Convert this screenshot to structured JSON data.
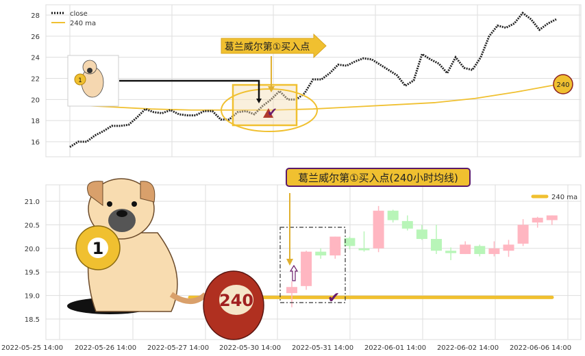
{
  "chart_data": [
    {
      "type": "line",
      "ylim": [
        15,
        29
      ],
      "yticks": [
        "16",
        "18",
        "20",
        "22",
        "24",
        "26",
        "28"
      ],
      "grid": true,
      "legend_placement": "top-left",
      "series": [
        {
          "name": "close",
          "style": "dotted",
          "color": "#111111",
          "values": [
            15.5,
            16.0,
            16.0,
            16.6,
            17.0,
            17.5,
            17.5,
            17.6,
            18.3,
            19.1,
            18.8,
            18.7,
            19.0,
            18.6,
            18.5,
            18.5,
            18.9,
            18.9,
            18.1,
            18.1,
            18.8,
            18.9,
            18.6,
            19.4,
            20.0,
            20.8,
            20.0,
            20.0,
            20.6,
            21.9,
            21.9,
            22.5,
            23.3,
            23.2,
            23.6,
            23.9,
            23.8,
            23.3,
            22.8,
            22.3,
            21.3,
            21.8,
            24.3,
            23.8,
            23.4,
            22.5,
            24.0,
            23.0,
            22.8,
            24.0,
            26.0,
            27.0,
            26.8,
            27.2,
            28.2,
            27.6,
            26.6,
            27.2,
            27.6
          ]
        },
        {
          "name": "240 ma",
          "color": "#f0c030",
          "values": [
            19.5,
            19.3,
            19.1,
            19.0,
            19.0,
            19.0,
            19.1,
            19.3,
            19.5,
            19.7,
            20.1,
            20.7,
            21.4
          ]
        }
      ],
      "annotations": {
        "arrow_label": "葛兰威尔第①买入点",
        "ball_label": "240"
      }
    },
    {
      "type": "candlestick",
      "ylim": [
        18.25,
        21.25
      ],
      "yticks": [
        "18.5",
        "19.0",
        "19.5",
        "20.0",
        "20.5",
        "21.0"
      ],
      "xticks": [
        "2022-05-25 14:00",
        "2022-05-26 14:00",
        "2022-05-27 14:00",
        "2022-05-30 14:00",
        "2022-05-31 14:00",
        "2022-06-01 14:00",
        "2022-06-02 14:00",
        "2022-06-06 14:00"
      ],
      "grid": true,
      "legend_placement": "top-right",
      "up_color": "#ffb6c1",
      "down_color": "#b8f5b8",
      "candles": [
        {
          "open": 19.05,
          "close": 19.18,
          "high": 19.3,
          "low": 18.75
        },
        {
          "open": 19.2,
          "close": 19.93,
          "high": 19.95,
          "low": 19.12
        },
        {
          "open": 19.93,
          "close": 19.85,
          "high": 20.0,
          "low": 19.78
        },
        {
          "open": 19.85,
          "close": 20.25,
          "high": 20.25,
          "low": 19.78
        },
        {
          "open": 20.22,
          "close": 20.05,
          "high": 20.25,
          "low": 19.98
        },
        {
          "open": 20.0,
          "close": 19.96,
          "high": 20.36,
          "low": 19.93
        },
        {
          "open": 20.0,
          "close": 20.8,
          "high": 20.9,
          "low": 19.92
        },
        {
          "open": 20.8,
          "close": 20.6,
          "high": 20.82,
          "low": 20.55
        },
        {
          "open": 20.58,
          "close": 20.42,
          "high": 20.7,
          "low": 20.38
        },
        {
          "open": 20.4,
          "close": 20.2,
          "high": 20.5,
          "low": 20.18
        },
        {
          "open": 20.2,
          "close": 19.95,
          "high": 20.5,
          "low": 19.88
        },
        {
          "open": 19.95,
          "close": 19.9,
          "high": 20.02,
          "low": 19.75
        },
        {
          "open": 19.88,
          "close": 20.08,
          "high": 20.15,
          "low": 19.88
        },
        {
          "open": 20.05,
          "close": 19.88,
          "high": 20.08,
          "low": 19.83
        },
        {
          "open": 19.88,
          "close": 20.0,
          "high": 20.15,
          "low": 19.83
        },
        {
          "open": 19.95,
          "close": 20.08,
          "high": 20.18,
          "low": 19.82
        },
        {
          "open": 20.1,
          "close": 20.5,
          "high": 20.62,
          "low": 20.05
        },
        {
          "open": 20.55,
          "close": 20.65,
          "high": 20.67,
          "low": 20.44
        },
        {
          "open": 20.6,
          "close": 20.7,
          "high": 20.7,
          "low": 20.5
        }
      ],
      "ma": {
        "name": "240 ma",
        "value": 18.96,
        "color": "#f0c030"
      },
      "annotations": {
        "title_box": "葛兰威尔第①买入点(240小时均线)",
        "ball_label": "240",
        "ball_one": "1"
      }
    }
  ]
}
